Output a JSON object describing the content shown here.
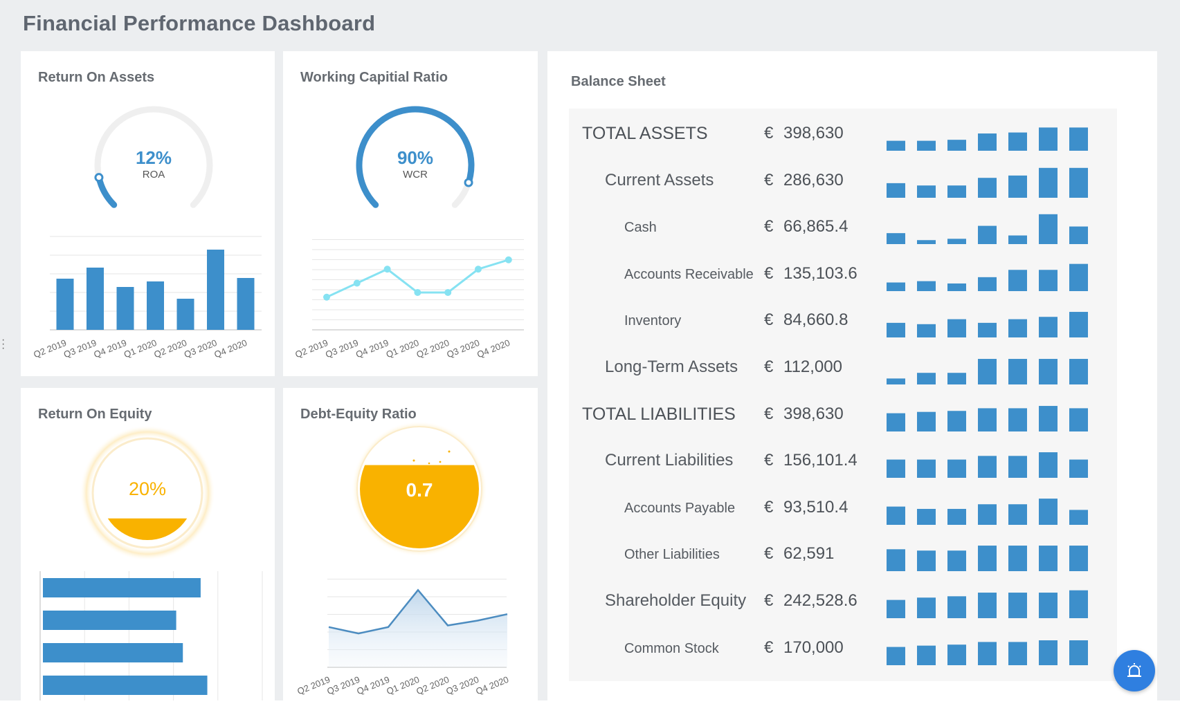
{
  "page": {
    "title": "Financial Performance Dashboard"
  },
  "quarters": [
    "Q2 2019",
    "Q3 2019",
    "Q4 2019",
    "Q1 2020",
    "Q2 2020",
    "Q3 2020",
    "Q4 2020"
  ],
  "colors": {
    "primary_blue": "#3d8fcb",
    "light_teal": "#86e2f2",
    "orange": "#f9b200",
    "gauge_track": "#efefef"
  },
  "roa": {
    "title": "Return On Assets",
    "gauge": {
      "value_text": "12%",
      "label": "ROA",
      "fraction": 0.12
    },
    "bars": [
      74,
      90,
      62,
      70,
      45,
      116,
      75
    ]
  },
  "wcr": {
    "title": "Working Capitial Ratio",
    "gauge": {
      "value_text": "90%",
      "label": "WCR",
      "fraction": 0.9
    },
    "line": [
      3.5,
      5.0,
      6.5,
      4.0,
      4.0,
      6.5,
      7.5
    ]
  },
  "roe": {
    "title": "Return On Equity",
    "tank": {
      "value_text": "20%",
      "fill_fraction": 0.2
    },
    "hbars": [
      0.71,
      0.6,
      0.63,
      0.74
    ]
  },
  "der": {
    "title": "Debt-Equity Ratio",
    "tank": {
      "value_text": "0.7",
      "fill_fraction": 0.7
    },
    "area": [
      2.5,
      2.1,
      2.5,
      4.8,
      2.6,
      2.9,
      3.3
    ]
  },
  "balance_sheet": {
    "title": "Balance Sheet",
    "currency": "€",
    "rows": [
      {
        "label": "TOTAL ASSETS",
        "value": "398,630",
        "level": 0,
        "spark": [
          0.3,
          0.3,
          0.33,
          0.52,
          0.55,
          0.7,
          0.7
        ]
      },
      {
        "label": "Current Assets",
        "value": "286,630",
        "level": 1,
        "spark": [
          0.44,
          0.37,
          0.37,
          0.6,
          0.67,
          0.9,
          0.9
        ]
      },
      {
        "label": "Cash",
        "value": "66,865.4",
        "level": 2,
        "spark": [
          0.33,
          0.12,
          0.16,
          0.55,
          0.26,
          0.9,
          0.53
        ]
      },
      {
        "label": "Accounts Receivable",
        "value": "135,103.6",
        "level": 2,
        "spark": [
          0.26,
          0.3,
          0.23,
          0.42,
          0.64,
          0.64,
          0.82
        ]
      },
      {
        "label": "Inventory",
        "value": "84,660.8",
        "level": 2,
        "spark": [
          0.44,
          0.4,
          0.55,
          0.44,
          0.55,
          0.62,
          0.77
        ]
      },
      {
        "label": "Long-Term Assets",
        "value": "112,000",
        "level": 1,
        "spark": [
          0.18,
          0.35,
          0.35,
          0.77,
          0.77,
          0.77,
          0.77
        ]
      },
      {
        "label": "TOTAL LIABILITIES",
        "value": "398,630",
        "level": 0,
        "spark": [
          0.55,
          0.59,
          0.62,
          0.7,
          0.7,
          0.77,
          0.7
        ]
      },
      {
        "label": "Current Liabilities",
        "value": "156,101.4",
        "level": 1,
        "spark": [
          0.55,
          0.55,
          0.55,
          0.66,
          0.66,
          0.77,
          0.55
        ]
      },
      {
        "label": "Accounts Payable",
        "value": "93,510.4",
        "level": 2,
        "spark": [
          0.55,
          0.48,
          0.48,
          0.62,
          0.62,
          0.79,
          0.45
        ]
      },
      {
        "label": "Other Liabilities",
        "value": "62,591",
        "level": 2,
        "spark": [
          0.66,
          0.62,
          0.62,
          0.77,
          0.77,
          0.77,
          0.77
        ]
      },
      {
        "label": "Shareholder Equity",
        "value": "242,528.6",
        "level": 1,
        "spark": [
          0.55,
          0.62,
          0.66,
          0.77,
          0.77,
          0.77,
          0.84
        ]
      },
      {
        "label": "Common Stock",
        "value": "170,000",
        "level": 2,
        "spark": [
          0.55,
          0.59,
          0.62,
          0.7,
          0.7,
          0.75,
          0.75
        ]
      }
    ]
  },
  "fab": {
    "icon": "alarm-bell-icon"
  }
}
